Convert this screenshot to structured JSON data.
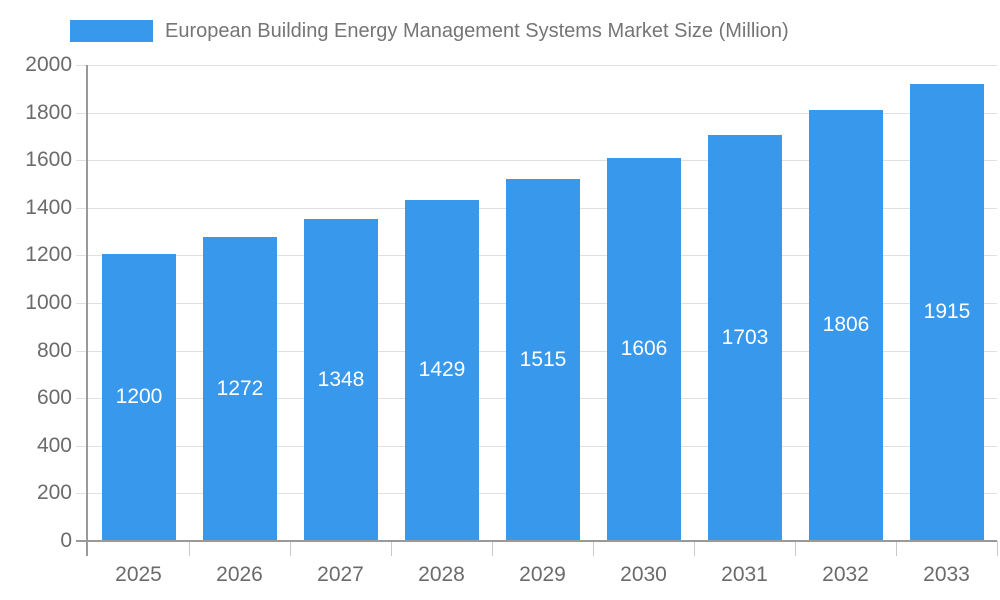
{
  "chart_data": {
    "type": "bar",
    "title": "European Building Energy Management Systems Market Size (Million)",
    "categories": [
      "2025",
      "2026",
      "2027",
      "2028",
      "2029",
      "2030",
      "2031",
      "2032",
      "2033"
    ],
    "values": [
      1200,
      1272,
      1348,
      1429,
      1515,
      1606,
      1703,
      1806,
      1915
    ],
    "yticks": [
      0,
      200,
      400,
      600,
      800,
      1000,
      1200,
      1400,
      1600,
      1800,
      2000
    ],
    "ylim": [
      0,
      2000
    ],
    "xlabel": "",
    "ylabel": "",
    "grid": true,
    "legend_position": "top",
    "bar_color": "#3898EC",
    "value_label_color": "#ffffff",
    "grid_color": "#e0e0e0",
    "axis_line_color": "#999999",
    "tick_color": "#c9c9c9",
    "axis_text_color": "#6b6b6b",
    "title_color": "#757575"
  }
}
